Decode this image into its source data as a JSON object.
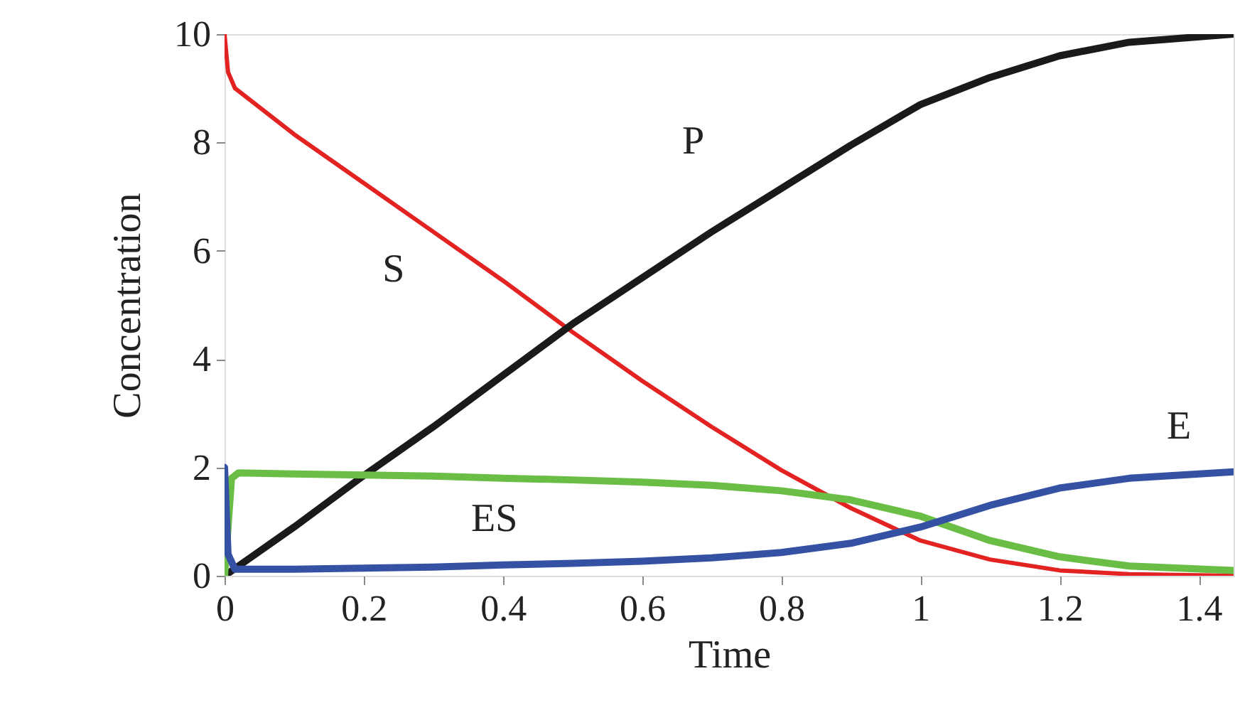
{
  "chart_data": {
    "type": "line",
    "xlabel": "Time",
    "ylabel": "Concentration",
    "xlim": [
      0,
      1.45
    ],
    "ylim": [
      0,
      10
    ],
    "xticks": [
      0,
      0.2,
      0.4,
      0.6,
      0.8,
      1,
      1.2,
      1.4
    ],
    "yticks": [
      0,
      2,
      4,
      6,
      8,
      10
    ],
    "grid": false,
    "marker": "none",
    "line_style": "solid",
    "series": [
      {
        "name": "S",
        "color": "#e32322",
        "x": [
          0,
          0.005,
          0.015,
          0.1,
          0.2,
          0.3,
          0.4,
          0.5,
          0.6,
          0.7,
          0.8,
          0.9,
          1.0,
          1.1,
          1.2,
          1.3,
          1.45
        ],
        "values": [
          10,
          9.3,
          9.0,
          8.15,
          7.25,
          6.35,
          5.45,
          4.5,
          3.6,
          2.75,
          1.95,
          1.25,
          0.65,
          0.3,
          0.1,
          0.03,
          0
        ]
      },
      {
        "name": "P",
        "color": "#1a1a1a",
        "x": [
          0,
          0.1,
          0.2,
          0.3,
          0.4,
          0.5,
          0.6,
          0.7,
          0.8,
          0.9,
          1.0,
          1.1,
          1.2,
          1.3,
          1.45
        ],
        "values": [
          0,
          0.9,
          1.85,
          2.75,
          3.7,
          4.65,
          5.5,
          6.35,
          7.15,
          7.95,
          8.7,
          9.2,
          9.6,
          9.85,
          10
        ]
      },
      {
        "name": "ES",
        "color": "#6abd45",
        "x": [
          0,
          0.01,
          0.02,
          0.1,
          0.2,
          0.3,
          0.4,
          0.5,
          0.6,
          0.7,
          0.8,
          0.9,
          1.0,
          1.1,
          1.2,
          1.3,
          1.45
        ],
        "values": [
          0,
          1.8,
          1.9,
          1.88,
          1.86,
          1.84,
          1.8,
          1.77,
          1.73,
          1.67,
          1.57,
          1.4,
          1.1,
          0.65,
          0.35,
          0.18,
          0.1
        ]
      },
      {
        "name": "E",
        "color": "#3451a3",
        "x": [
          0,
          0.005,
          0.015,
          0.1,
          0.2,
          0.3,
          0.4,
          0.5,
          0.6,
          0.7,
          0.8,
          0.9,
          1.0,
          1.1,
          1.2,
          1.3,
          1.45
        ],
        "values": [
          2,
          0.4,
          0.12,
          0.12,
          0.14,
          0.16,
          0.2,
          0.23,
          0.27,
          0.33,
          0.43,
          0.6,
          0.9,
          1.3,
          1.62,
          1.8,
          1.92
        ]
      }
    ]
  }
}
